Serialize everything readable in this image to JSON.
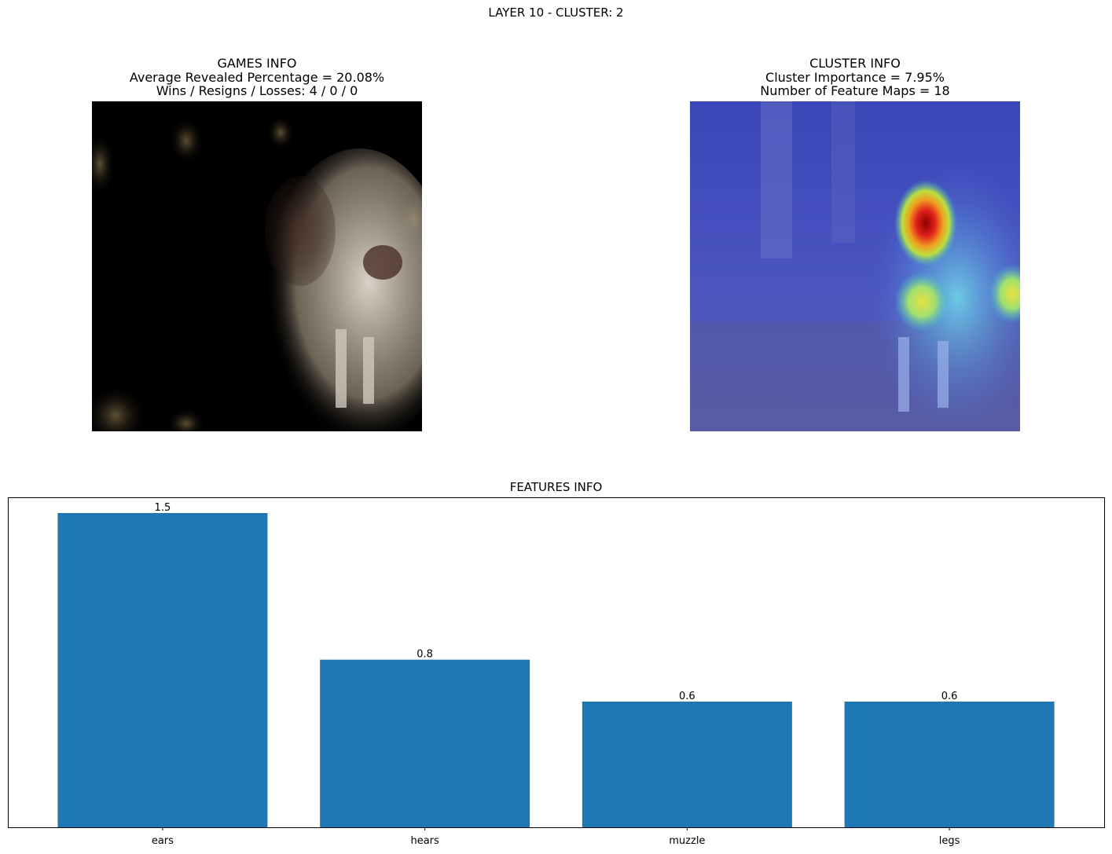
{
  "suptitle": "LAYER 10 - CLUSTER: 2",
  "games_info": {
    "title": "GAMES INFO",
    "line1": "Average Revealed Percentage = 20.08%",
    "line2": "Wins / Resigns / Losses: 4 / 0 / 0"
  },
  "cluster_info": {
    "title": "CLUSTER INFO",
    "line1": "Cluster Importance = 7.95%",
    "line2": "Number of Feature Maps = 18"
  },
  "colors": {
    "bar": "#1f77b4"
  },
  "chart_data": {
    "type": "bar",
    "title": "FEATURES INFO",
    "categories": [
      "ears",
      "hears",
      "muzzle",
      "legs"
    ],
    "values": [
      1.5,
      0.8,
      0.6,
      0.6
    ],
    "value_labels": [
      "1.5",
      "0.8",
      "0.6",
      "0.6"
    ],
    "xlabel": "",
    "ylabel": "",
    "ylim": [
      0,
      1.575
    ],
    "grid": false,
    "y_ticks_visible": false
  }
}
